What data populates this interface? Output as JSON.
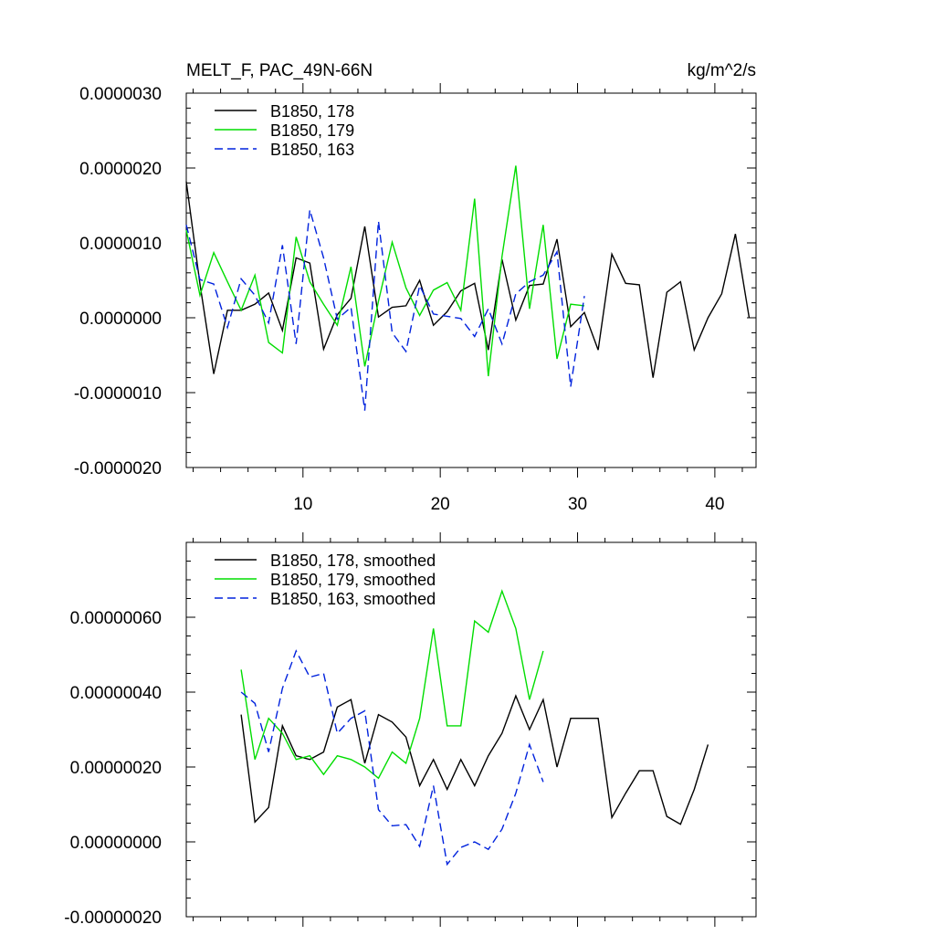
{
  "chart_data": [
    {
      "type": "line",
      "title": "MELT_F, PAC_49N-66N",
      "units": "kg/m^2/s",
      "xlabel": "",
      "ylabel": "",
      "xlim": [
        1.5,
        43
      ],
      "ylim": [
        -2e-06,
        3e-06
      ],
      "xticks": [
        10,
        20,
        30,
        40
      ],
      "xtick_labels": [
        "10",
        "20",
        "30",
        "40"
      ],
      "yticks": [
        -2e-06,
        -1e-06,
        0,
        1e-06,
        2e-06,
        3e-06
      ],
      "ytick_labels": [
        "-0.0000020",
        "-0.0000010",
        "0.0000000",
        "0.0000010",
        "0.0000020",
        "0.0000030"
      ],
      "legend_position": "top-left",
      "series": [
        {
          "name": "B1850, 178",
          "color": "#000000",
          "dash": "solid",
          "x": [
            1.5,
            2.5,
            3.5,
            4.5,
            5.5,
            6.5,
            7.5,
            8.5,
            9.5,
            10.5,
            11.5,
            12.5,
            13.5,
            14.5,
            15.5,
            16.5,
            17.5,
            18.5,
            19.5,
            20.5,
            21.5,
            22.5,
            23.5,
            24.5,
            25.5,
            26.5,
            27.5,
            28.5,
            29.5,
            30.5,
            31.5,
            32.5,
            33.5,
            34.5,
            35.5,
            36.5,
            37.5,
            38.5,
            39.5,
            40.5,
            41.5,
            42.5
          ],
          "values": [
            1.82e-06,
            4.5e-07,
            -7.5e-07,
            1e-07,
            1e-07,
            1.8e-07,
            3.3e-07,
            -1.7e-07,
            8e-07,
            7.3e-07,
            -4.2e-07,
            4e-08,
            2.6e-07,
            1.22e-06,
            1e-08,
            1.4e-07,
            1.6e-07,
            5e-07,
            -1e-07,
            8e-08,
            3.6e-07,
            4.6e-07,
            -4.3e-07,
            7.8e-07,
            -3e-08,
            4.3e-07,
            4.5e-07,
            1.05e-06,
            -1.2e-07,
            7e-08,
            -4.3e-07,
            8.5e-07,
            4.6e-07,
            4.4e-07,
            -8e-07,
            3.4e-07,
            4.8e-07,
            -4.3e-07,
            0.0,
            3.2e-07,
            1.12e-06,
            0.0
          ]
        },
        {
          "name": "B1850, 179",
          "color": "#00dd00",
          "dash": "solid",
          "x": [
            1.5,
            2.5,
            3.5,
            4.5,
            5.5,
            6.5,
            7.5,
            8.5,
            9.5,
            10.5,
            11.5,
            12.5,
            13.5,
            14.5,
            15.5,
            16.5,
            17.5,
            18.5,
            19.5,
            20.5,
            21.5,
            22.5,
            23.5,
            24.5,
            25.5,
            26.5,
            27.5,
            28.5,
            29.5,
            30.5
          ],
          "values": [
            1.17e-06,
            3e-07,
            8.7e-07,
            4.8e-07,
            1e-07,
            5.7e-07,
            -3.3e-07,
            -4.7e-07,
            1.08e-06,
            4.8e-07,
            1.8e-07,
            -1e-07,
            6.8e-07,
            -6.5e-07,
            2.2e-07,
            1.01e-06,
            4e-07,
            3e-08,
            3.7e-07,
            4.7e-07,
            1e-07,
            1.59e-06,
            -7.8e-07,
            8.2e-07,
            2.03e-06,
            1.2e-07,
            1.24e-06,
            -5.5e-07,
            1.8e-07,
            1.6e-07
          ]
        },
        {
          "name": "B1850, 163",
          "color": "#0022dd",
          "dash": "dashed",
          "x": [
            1.5,
            2.5,
            3.5,
            4.5,
            5.5,
            6.5,
            7.5,
            8.5,
            9.5,
            10.5,
            11.5,
            12.5,
            13.5,
            14.5,
            15.5,
            16.5,
            17.5,
            18.5,
            19.5,
            20.5,
            21.5,
            22.5,
            23.5,
            24.5,
            25.5,
            26.5,
            27.5,
            28.5,
            29.5,
            30.5
          ],
          "values": [
            1.24e-06,
            5.1e-07,
            4.5e-07,
            -1.3e-07,
            5.2e-07,
            3e-07,
            -7e-08,
            9.7e-07,
            -3.5e-07,
            1.44e-06,
            8e-07,
            -2e-08,
            1.4e-07,
            -1.24e-06,
            1.29e-06,
            -2e-07,
            -4.5e-07,
            4.3e-07,
            5e-08,
            2e-08,
            -1e-08,
            -2.5e-07,
            1.2e-07,
            -3.5e-07,
            3.2e-07,
            4.8e-07,
            5.7e-07,
            8.8e-07,
            -9.2e-07,
            2.9e-07
          ]
        }
      ]
    },
    {
      "type": "line",
      "title": "",
      "xlabel": "",
      "ylabel": "",
      "xlim": [
        1.5,
        43
      ],
      "ylim": [
        -2e-07,
        8e-07
      ],
      "xticks": [
        10,
        20,
        30,
        40
      ],
      "yticks": [
        -2e-07,
        0,
        2e-07,
        4e-07,
        6e-07
      ],
      "ytick_labels": [
        "-0.00000020",
        "0.00000000",
        "0.00000020",
        "0.00000040",
        "0.00000060"
      ],
      "legend_position": "top-left",
      "series": [
        {
          "name": "B1850, 178, smoothed",
          "color": "#000000",
          "dash": "solid",
          "x": [
            5.5,
            6.5,
            7.5,
            8.5,
            9.5,
            10.5,
            11.5,
            12.5,
            13.5,
            14.5,
            15.5,
            16.5,
            17.5,
            18.5,
            19.5,
            20.5,
            21.5,
            22.5,
            23.5,
            24.5,
            25.5,
            26.5,
            27.5,
            28.5,
            29.5,
            30.5,
            31.5,
            32.5,
            33.5,
            34.5,
            35.5,
            36.5,
            37.5,
            38.5,
            39.5
          ],
          "values": [
            3.4e-07,
            5.3e-08,
            9.2e-08,
            3.1e-07,
            2.3e-07,
            2.2e-07,
            2.4e-07,
            3.6e-07,
            3.8e-07,
            2.1e-07,
            3.4e-07,
            3.2e-07,
            2.8e-07,
            1.5e-07,
            2.2e-07,
            1.4e-07,
            2.2e-07,
            1.5e-07,
            2.3e-07,
            2.9e-07,
            3.9e-07,
            3e-07,
            3.8e-07,
            2e-07,
            3.3e-07,
            3.3e-07,
            3.3e-07,
            6.5e-08,
            1.3e-07,
            1.9e-07,
            1.9e-07,
            6.8e-08,
            4.7e-08,
            1.4e-07,
            2.6e-07
          ]
        },
        {
          "name": "B1850, 179, smoothed",
          "color": "#00dd00",
          "dash": "solid",
          "x": [
            5.5,
            6.5,
            7.5,
            8.5,
            9.5,
            10.5,
            11.5,
            12.5,
            13.5,
            14.5,
            15.5,
            16.5,
            17.5,
            18.5,
            19.5,
            20.5,
            21.5,
            22.5,
            23.5,
            24.5,
            25.5,
            26.5,
            27.5
          ],
          "values": [
            4.6e-07,
            2.2e-07,
            3.3e-07,
            2.9e-07,
            2.2e-07,
            2.3e-07,
            1.8e-07,
            2.3e-07,
            2.2e-07,
            2e-07,
            1.7e-07,
            2.4e-07,
            2.1e-07,
            3.3e-07,
            5.7e-07,
            3.1e-07,
            3.1e-07,
            5.9e-07,
            5.6e-07,
            6.7e-07,
            5.7e-07,
            3.8e-07,
            5.1e-07
          ]
        },
        {
          "name": "B1850, 163, smoothed",
          "color": "#0022dd",
          "dash": "dashed",
          "x": [
            5.5,
            6.5,
            7.5,
            8.5,
            9.5,
            10.5,
            11.5,
            12.5,
            13.5,
            14.5,
            15.5,
            16.5,
            17.5,
            18.5,
            19.5,
            20.5,
            21.5,
            22.5,
            23.5,
            24.5,
            25.5,
            26.5,
            27.5
          ],
          "values": [
            4e-07,
            3.7e-07,
            2.4e-07,
            4.1e-07,
            5.1e-07,
            4.4e-07,
            4.5e-07,
            2.9e-07,
            3.3e-07,
            3.5e-07,
            8.6e-08,
            4.3e-08,
            4.6e-08,
            -1.2e-08,
            1.5e-07,
            -6e-08,
            -1.5e-08,
            0.0,
            -2e-08,
            3.4e-08,
            1.3e-07,
            2.6e-07,
            1.6e-07
          ]
        }
      ]
    }
  ]
}
